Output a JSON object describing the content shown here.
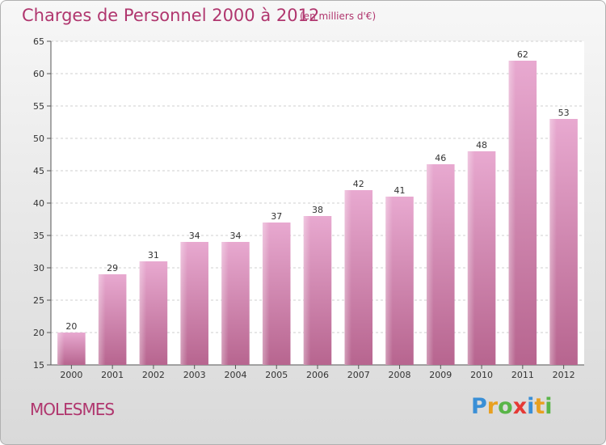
{
  "header": {
    "title": "Charges de Personnel 2000 à 2012",
    "subtitle": "(en milliers d'€)"
  },
  "footer": {
    "place": "MOLESMES",
    "logo": [
      "P",
      "r",
      "o",
      "x",
      "i",
      "t",
      "i"
    ]
  },
  "colors": {
    "bar": "#c76ea3",
    "bar_light": "#e4a6cc",
    "text_accent": "#b0366e"
  },
  "chart_data": {
    "type": "bar",
    "title": "Charges de Personnel 2000 à 2012",
    "subtitle": "(en milliers d'€)",
    "categories": [
      "2000",
      "2001",
      "2002",
      "2003",
      "2004",
      "2005",
      "2006",
      "2007",
      "2008",
      "2009",
      "2010",
      "2011",
      "2012"
    ],
    "values": [
      20,
      29,
      31,
      34,
      34,
      37,
      38,
      42,
      41,
      46,
      48,
      62,
      53
    ],
    "ylim": [
      15,
      65
    ],
    "yticks": [
      15,
      20,
      25,
      30,
      35,
      40,
      45,
      50,
      55,
      60,
      65
    ],
    "xlabel": "",
    "ylabel": "",
    "grid": true
  }
}
